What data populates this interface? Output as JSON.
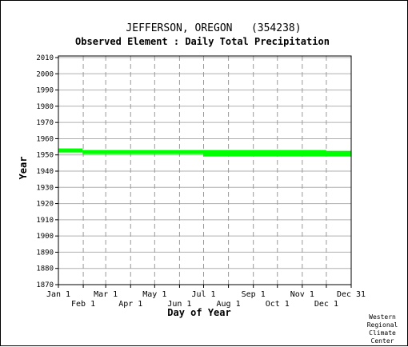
{
  "chart_data": {
    "type": "bar",
    "title": "JEFFERSON, OREGON   (354238)",
    "subtitle": "Observed Element : Daily Total Precipitation",
    "xlabel": "Day of Year",
    "ylabel": "Year",
    "ylim": [
      1870,
      2011
    ],
    "yticks": [
      "2010",
      "2000",
      "1990",
      "1980",
      "1970",
      "1960",
      "1950",
      "1940",
      "1930",
      "1920",
      "1910",
      "1900",
      "1890",
      "1880",
      "1870"
    ],
    "ytick_values": [
      2010,
      2000,
      1990,
      1980,
      1970,
      1960,
      1950,
      1940,
      1930,
      1920,
      1910,
      1900,
      1890,
      1880,
      1870
    ],
    "xlim": [
      1,
      366
    ],
    "xticks_top_row": [
      {
        "label": "Jan 1",
        "day": 1
      },
      {
        "label": "Mar 1",
        "day": 60
      },
      {
        "label": "May 1",
        "day": 121
      },
      {
        "label": "Jul 1",
        "day": 182
      },
      {
        "label": "Sep 1",
        "day": 244
      },
      {
        "label": "Nov 1",
        "day": 305
      },
      {
        "label": "Dec 31",
        "day": 366
      }
    ],
    "xticks_bottom_row": [
      {
        "label": "Feb 1",
        "day": 32
      },
      {
        "label": "Apr 1",
        "day": 91
      },
      {
        "label": "Jun 1",
        "day": 152
      },
      {
        "label": "Aug 1",
        "day": 213
      },
      {
        "label": "Oct 1",
        "day": 274
      },
      {
        "label": "Dec 1",
        "day": 335
      }
    ],
    "grid": true,
    "bar_color": "#00ff00",
    "coverage": [
      {
        "day_start": 1,
        "day_end": 31,
        "year_start": 1951.5,
        "year_end": 1954.0
      },
      {
        "day_start": 31,
        "day_end": 182,
        "year_start": 1950.5,
        "year_end": 1953.0
      },
      {
        "day_start": 182,
        "day_end": 335,
        "year_start": 1949.0,
        "year_end": 1953.0
      },
      {
        "day_start": 335,
        "day_end": 366,
        "year_start": 1949.0,
        "year_end": 1952.5
      }
    ]
  },
  "credit": [
    "Western",
    "Regional",
    "Climate",
    "Center"
  ]
}
